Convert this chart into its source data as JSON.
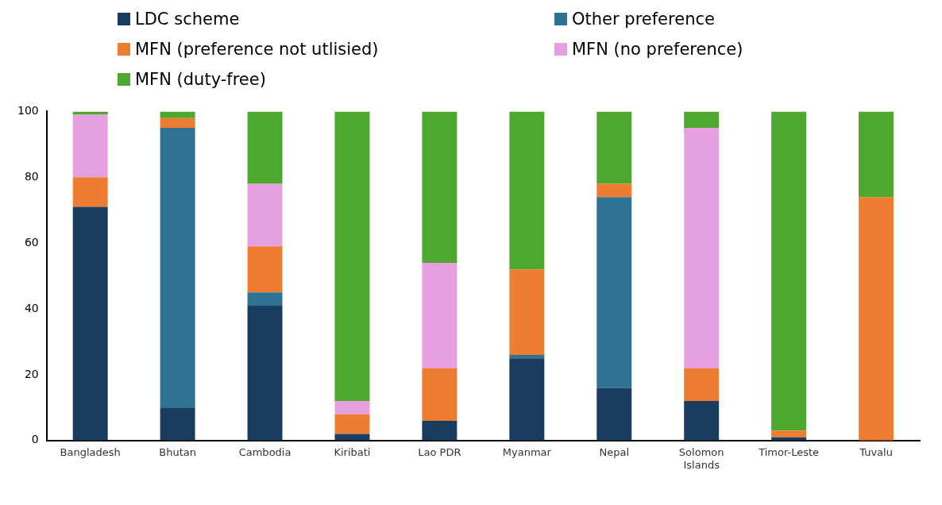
{
  "chart_data": {
    "type": "bar",
    "stacked": true,
    "legend": "top",
    "grid": false,
    "categories": [
      "Bangladesh",
      "Bhutan",
      "Cambodia",
      "Kiribati",
      "Lao PDR",
      "Myanmar",
      "Nepal",
      "Solomon Islands",
      "Timor-Leste",
      "Tuvalu"
    ],
    "ylim": [
      0,
      100
    ],
    "yticks": [
      0,
      20,
      40,
      60,
      80,
      100
    ],
    "series": [
      {
        "name": "LDC scheme",
        "color": "#1a3c5e",
        "values": [
          71,
          10,
          41,
          2,
          6,
          25,
          16,
          12,
          1,
          0
        ]
      },
      {
        "name": "Other preference",
        "color": "#2f7394",
        "values": [
          0,
          85,
          4,
          0,
          0,
          1,
          58,
          0,
          0,
          0
        ]
      },
      {
        "name": "MFN (preference not utlisied)",
        "color": "#ed7d31",
        "values": [
          9,
          3,
          14,
          6,
          16,
          26,
          4,
          10,
          2,
          74
        ]
      },
      {
        "name": "MFN (no preference)",
        "color": "#e6a0e0",
        "values": [
          19,
          0,
          19,
          4,
          32,
          0,
          0,
          73,
          0,
          0
        ]
      },
      {
        "name": "MFN (duty-free)",
        "color": "#4ea72e",
        "values": [
          1,
          2,
          22,
          88,
          46,
          48,
          22,
          5,
          97,
          26
        ]
      }
    ]
  }
}
